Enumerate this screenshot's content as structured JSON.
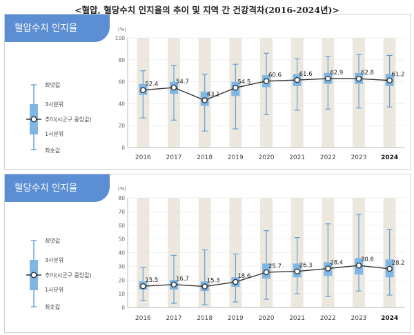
{
  "title": "<혈압, 혈당수치 인지율의 추이 및 지역 간 건강격차(2016-2024년)>",
  "legend": {
    "max": "최댓값",
    "q3": "3사분위",
    "median": "추이(시군구 중앙값)",
    "q1": "1사분위",
    "min": "최솟값"
  },
  "colors": {
    "tab": "#5b8ed3",
    "box": "#7fb6e4",
    "whisker": "#5f9fd6",
    "line": "#333333",
    "band": "#ede8de"
  },
  "chart_data": [
    {
      "type": "box",
      "title": "혈압수치 인지율",
      "unit": "(%)",
      "ylim": [
        0,
        100
      ],
      "yticks": [
        0,
        20,
        40,
        60,
        80,
        100
      ],
      "categories": [
        "2016",
        "2017",
        "2018",
        "2019",
        "2020",
        "2021",
        "2022",
        "2023",
        "2024"
      ],
      "median": [
        52.4,
        54.7,
        43.1,
        54.5,
        60.6,
        61.6,
        62.9,
        62.8,
        61.2
      ],
      "median_labels": [
        "52.4",
        "54.7",
        "43.1",
        "54.5",
        "60.6",
        "61.6",
        "62.9",
        "62.8",
        "61.2"
      ],
      "q1": [
        48,
        49,
        38,
        47,
        55,
        56,
        58,
        58,
        56
      ],
      "q3": [
        58,
        60,
        51,
        60,
        66,
        67,
        68,
        68,
        67
      ],
      "min": [
        27,
        25,
        15,
        17,
        30,
        34,
        35,
        36,
        37
      ],
      "max": [
        70,
        75,
        67,
        76,
        86,
        81,
        83,
        85,
        84
      ]
    },
    {
      "type": "box",
      "title": "혈당수치 인지율",
      "unit": "(%)",
      "ylim": [
        0,
        80
      ],
      "yticks": [
        0,
        10,
        20,
        30,
        40,
        50,
        60,
        70,
        80
      ],
      "categories": [
        "2016",
        "2017",
        "2018",
        "2019",
        "2020",
        "2021",
        "2022",
        "2023",
        "2024"
      ],
      "median": [
        15.5,
        16.7,
        15.3,
        18.6,
        25.7,
        26.3,
        28.4,
        30.6,
        28.2
      ],
      "median_labels": [
        "15.5",
        "16.7",
        "15.3",
        "18.6",
        "25.7",
        "26.3",
        "28.4",
        "30.6",
        "28.2"
      ],
      "q1": [
        13,
        13,
        12,
        15,
        21,
        22,
        23,
        24,
        22
      ],
      "q3": [
        19,
        20,
        19,
        22,
        32,
        32,
        33,
        36,
        35
      ],
      "min": [
        5,
        3,
        2,
        4,
        6,
        10,
        8,
        12,
        9
      ],
      "max": [
        29,
        38,
        42,
        39,
        56,
        51,
        61,
        68,
        57
      ]
    }
  ]
}
